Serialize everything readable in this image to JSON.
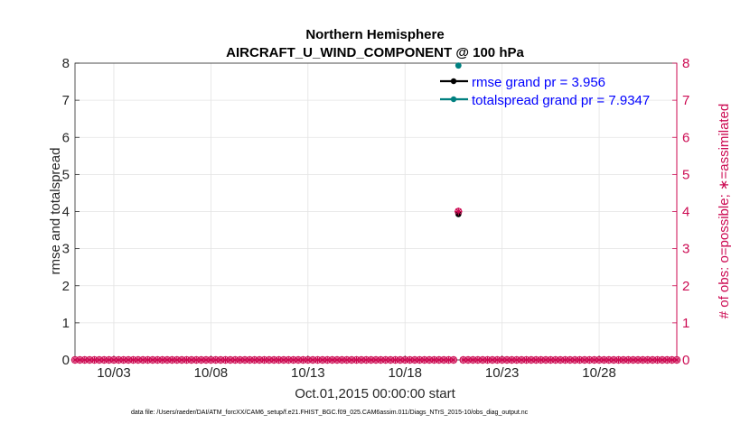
{
  "chart_data": {
    "type": "scatter",
    "title": "Northern Hemisphere",
    "subtitle": "AIRCRAFT_U_WIND_COMPONENT @ 100 hPa",
    "xlabel": "Oct.01,2015 00:00:00 start",
    "ylabel": "rmse and totalspread",
    "ylabel_right": "# of obs: o=possible; ∗=assimilated",
    "x_ticks": [
      "10/03",
      "10/08",
      "10/13",
      "10/18",
      "10/23",
      "10/28"
    ],
    "x_tick_days": [
      3,
      8,
      13,
      18,
      23,
      28
    ],
    "xlim": [
      1,
      32
    ],
    "ylim": [
      0,
      8
    ],
    "ylim_right": [
      0,
      8
    ],
    "y_ticks": [
      "0",
      "1",
      "2",
      "3",
      "4",
      "5",
      "6",
      "7",
      "8"
    ],
    "y_ticks_right": [
      "0",
      "1",
      "2",
      "3",
      "4",
      "5",
      "6",
      "7",
      "8"
    ],
    "grid": true,
    "legend_position": "top-right",
    "legend": [
      "rmse grand pr = 3.956",
      "totalspread grand pr = 7.9347"
    ],
    "series": [
      {
        "name": "rmse",
        "color": "#000000",
        "marker": "circle",
        "x": [
          20.75
        ],
        "y": [
          3.956
        ]
      },
      {
        "name": "totalspread",
        "color": "#008080",
        "marker": "circle",
        "x": [
          20.75
        ],
        "y": [
          7.9347
        ]
      },
      {
        "name": "obs possible",
        "color": "#cc0a52",
        "marker": "circle-open",
        "axis": "right",
        "x_start": 1.0,
        "x_end": 32.0,
        "x_step": 0.25,
        "zero_gap": [
          20.75,
          20.75
        ],
        "value_at_gap": 4
      },
      {
        "name": "obs assimilated",
        "color": "#cc0a52",
        "marker": "star",
        "axis": "right",
        "x_start": 1.0,
        "x_end": 32.0,
        "x_step": 0.25,
        "zero_gap": [
          20.75,
          20.75
        ],
        "value_at_gap": 4
      }
    ]
  },
  "footer": "data file: /Users/raeder/DAI/ATM_forcXX/CAM6_setup/f.e21.FHIST_BGC.f09_025.CAM6assim.011/Diags_NTrS_2015-10/obs_diag_output.nc"
}
